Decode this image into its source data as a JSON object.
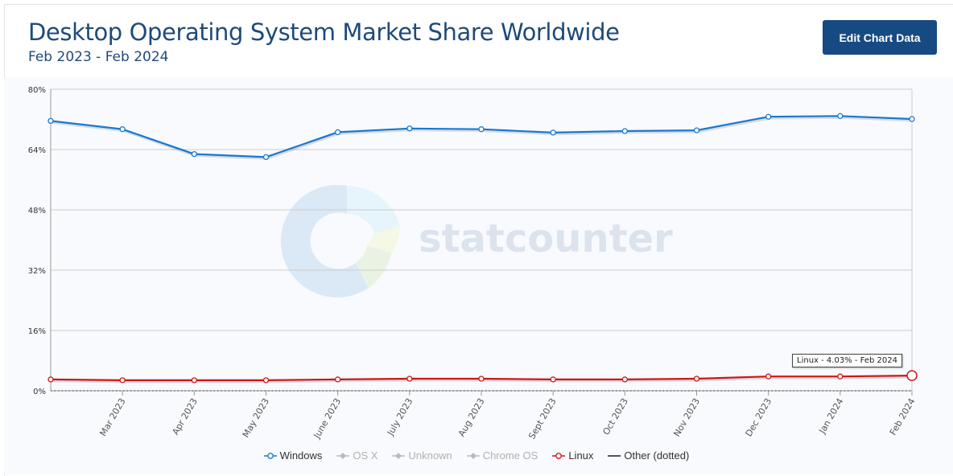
{
  "header": {
    "title": "Desktop Operating System Market Share Worldwide",
    "subtitle": "Feb 2023 - Feb 2024",
    "edit_button_label": "Edit Chart Data"
  },
  "watermark": {
    "text": "statcounter"
  },
  "tooltip": {
    "text": "Linux - 4.03% - Feb 2024"
  },
  "colors": {
    "windows": "#1a78d0",
    "linux": "#d0161b",
    "other": "#555555",
    "inactive": "#aaaaaa",
    "grid": "#cccccc"
  },
  "legend": [
    {
      "label": "Windows",
      "color": "#1a78d0",
      "active": true,
      "symbol": "circle-line"
    },
    {
      "label": "OS X",
      "color": "#bbbbbb",
      "active": false,
      "symbol": "diamond-line"
    },
    {
      "label": "Unknown",
      "color": "#bbbbbb",
      "active": false,
      "symbol": "diamond-line"
    },
    {
      "label": "Chrome OS",
      "color": "#bbbbbb",
      "active": false,
      "symbol": "diamond-line"
    },
    {
      "label": "Linux",
      "color": "#d0161b",
      "active": true,
      "symbol": "circle-line"
    },
    {
      "label": "Other (dotted)",
      "color": "#555555",
      "active": true,
      "symbol": "line"
    }
  ],
  "chart_data": {
    "type": "line",
    "x": [
      "Feb 2023",
      "Mar 2023",
      "Apr 2023",
      "May 2023",
      "June 2023",
      "July 2023",
      "Aug 2023",
      "Sept 2023",
      "Oct 2023",
      "Nov 2023",
      "Dec 2023",
      "Jan 2024",
      "Feb 2024"
    ],
    "x_tick_labels": [
      "Mar 2023",
      "Apr 2023",
      "May 2023",
      "June 2023",
      "July 2023",
      "Aug 2023",
      "Sept 2023",
      "Oct 2023",
      "Nov 2023",
      "Dec 2023",
      "Jan 2024",
      "Feb 2024"
    ],
    "series": [
      {
        "name": "Windows",
        "values": [
          71.6,
          69.4,
          62.8,
          62.0,
          68.6,
          69.6,
          69.4,
          68.5,
          68.9,
          69.1,
          72.7,
          72.9,
          72.1
        ]
      },
      {
        "name": "Linux",
        "values": [
          3.0,
          2.8,
          2.8,
          2.8,
          3.0,
          3.2,
          3.2,
          3.0,
          3.0,
          3.2,
          3.8,
          3.8,
          4.03
        ]
      },
      {
        "name": "Other (dotted)",
        "values": [
          0,
          0,
          0,
          0,
          0,
          0,
          0,
          0,
          0,
          0,
          0,
          0,
          0
        ]
      }
    ],
    "y_ticks": [
      "0%",
      "16%",
      "32%",
      "48%",
      "64%",
      "80%"
    ],
    "y_tick_values": [
      0,
      16,
      32,
      48,
      64,
      80
    ],
    "ylim": [
      0,
      80
    ],
    "grid": true
  }
}
